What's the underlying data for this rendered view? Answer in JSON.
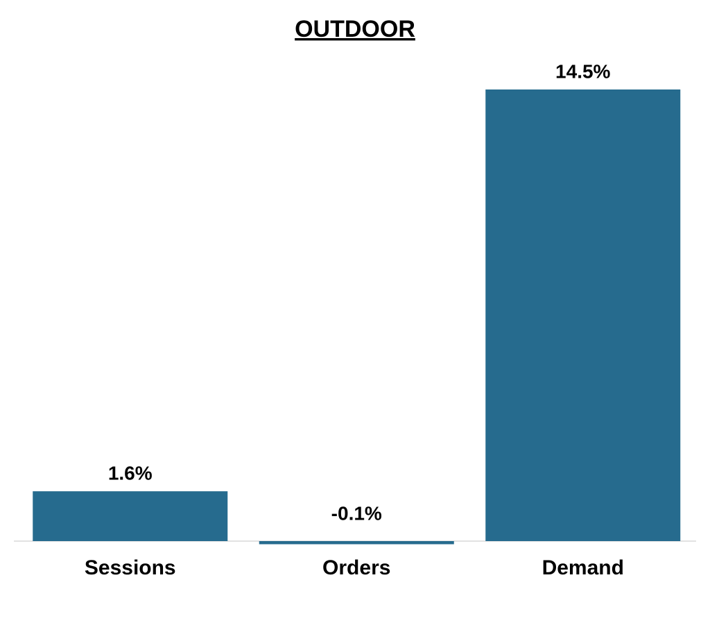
{
  "chart_data": {
    "type": "bar",
    "title": "OUTDOOR",
    "categories": [
      "Sessions",
      "Orders",
      "Demand"
    ],
    "values": [
      1.6,
      -0.1,
      14.5
    ],
    "value_labels": [
      "1.6%",
      "-0.1%",
      "14.5%"
    ],
    "color": "#266b8e"
  }
}
